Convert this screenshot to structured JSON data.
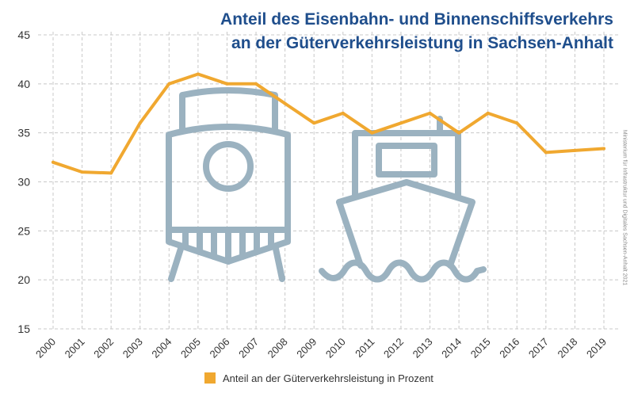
{
  "chart_data": {
    "type": "line",
    "title": "Anteil des Eisenbahn- und Binnenschiffsverkehrs",
    "subtitle": "an der Güterverkehrsleistung in Sachsen-Anhalt",
    "xlabel": "",
    "ylabel": "",
    "ylim": [
      15,
      45
    ],
    "yticks": [
      "15",
      "20",
      "25",
      "30",
      "35",
      "40",
      "45"
    ],
    "grid": true,
    "legend_position": "bottom",
    "categories": [
      "2000",
      "2001",
      "2002",
      "2003",
      "2004",
      "2005",
      "2006",
      "2007",
      "2008",
      "2009",
      "2010",
      "2011",
      "2012",
      "2013",
      "2014",
      "2015",
      "2016",
      "2017",
      "2018",
      "2019"
    ],
    "series": [
      {
        "name": "Anteil an der Güterverkehrsleistung in Prozent",
        "values": [
          32.0,
          31.0,
          30.9,
          36.0,
          40.0,
          41.0,
          40.0,
          40.0,
          38.0,
          36.0,
          37.0,
          35.0,
          36.0,
          37.0,
          35.0,
          37.0,
          36.0,
          33.0,
          33.2,
          33.4
        ],
        "color": "#f0a830"
      }
    ]
  },
  "source": "Ministerium für Infrastruktur und Digitales Sachsen-Anhalt 2021",
  "colors": {
    "title": "#1f4e8c",
    "grid": "#c8c8c8",
    "icons": "#9bb2c0"
  },
  "icons": [
    "train-icon",
    "ship-icon"
  ]
}
